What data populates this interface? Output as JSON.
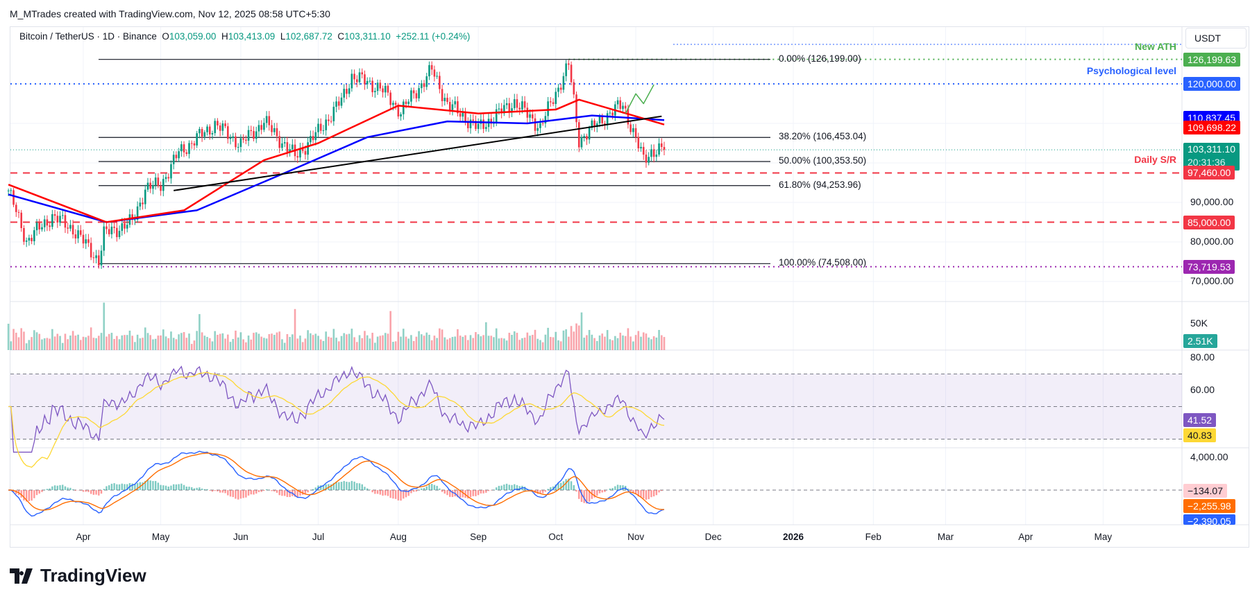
{
  "credit": "M_MTrades created with TradingView.com, Nov 12, 2025 08:58 UTC+5:30",
  "legend": {
    "symbol": "Bitcoin / TetherUS · 1D · Binance",
    "o_label": "O",
    "o": "103,059.00",
    "h_label": "H",
    "h": "103,413.09",
    "l_label": "L",
    "l": "102,687.72",
    "c_label": "C",
    "c": "103,311.10",
    "change": "+252.11 (+0.24%)"
  },
  "unit": "USDT",
  "colors": {
    "up": "#089981",
    "down": "#f23645",
    "ma_red": "#ff0000",
    "ma_blue": "#0000ff",
    "rsi": "#7e57c2",
    "rsi_ma": "#fdd835",
    "macd": "#2962ff",
    "signal": "#ff6d00"
  },
  "price_axis": [
    "90,000.00",
    "80,000.00",
    "70,000.00"
  ],
  "price_tags": [
    {
      "text": "126,199.63",
      "value": 126199.63,
      "color": "#4caf50"
    },
    {
      "text": "120,000.00",
      "value": 120000,
      "color": "#2962ff"
    },
    {
      "text": "110,837.45",
      "value": 110837.45,
      "color": "#0000ff"
    },
    {
      "text": "109,698.22",
      "value": 109698.22,
      "color": "#ff0000"
    },
    {
      "text": "103,311.10",
      "value": 103311.1,
      "color": "#089981",
      "countdown": "20:31:36"
    },
    {
      "text": "97,460.00",
      "value": 97460,
      "color": "#f23645"
    },
    {
      "text": "85,000.00",
      "value": 85000,
      "color": "#f23645"
    },
    {
      "text": "73,719.53",
      "value": 73719.53,
      "color": "#9c27b0"
    }
  ],
  "annotations": [
    {
      "text": "New ATH",
      "value": 126199.63,
      "color": "#4caf50"
    },
    {
      "text": "Psychological level",
      "value": 120000,
      "color": "#2962ff"
    },
    {
      "text": "Daily S/R",
      "value": 97460,
      "color": "#f23645"
    }
  ],
  "fib": [
    {
      "text": "0.00% (126,199.00)",
      "value": 126199
    },
    {
      "text": "38.20% (106,453.04)",
      "value": 106453.04
    },
    {
      "text": "50.00% (100,353.50)",
      "value": 100353.5
    },
    {
      "text": "61.80% (94,253.96)",
      "value": 94253.96
    },
    {
      "text": "100.00% (74,508.00)",
      "value": 74508
    }
  ],
  "volume_axis": "50K",
  "volume_tag": "2.51K",
  "rsi_axis": [
    "80.00",
    "60.00"
  ],
  "rsi_tags": [
    "41.52",
    "40.83"
  ],
  "macd_axis": "4,000.00",
  "macd_tags": [
    "−134.07",
    "−2,255.98",
    "−2,390.05"
  ],
  "months": [
    "Apr",
    "May",
    "Jun",
    "Jul",
    "Aug",
    "Sep",
    "Oct",
    "Nov",
    "Dec",
    "2026",
    "Feb",
    "Mar",
    "Apr",
    "May"
  ],
  "logo": "TradingView",
  "chart_data": {
    "type": "candlestick",
    "symbol": "BTCUSDT",
    "timeframe": "1D",
    "closes_keypoints": [
      [
        "2025-03-03",
        93000
      ],
      [
        "2025-03-10",
        80300
      ],
      [
        "2025-03-20",
        86500
      ],
      [
        "2025-03-28",
        83300
      ],
      [
        "2025-04-07",
        75300
      ],
      [
        "2025-04-09",
        82000
      ],
      [
        "2025-04-20",
        85000
      ],
      [
        "2025-04-25",
        93500
      ],
      [
        "2025-05-01",
        94500
      ],
      [
        "2025-05-08",
        102600
      ],
      [
        "2025-05-22",
        109800
      ],
      [
        "2025-06-01",
        104700
      ],
      [
        "2025-06-10",
        110500
      ],
      [
        "2025-06-22",
        101600
      ],
      [
        "2025-06-30",
        107000
      ],
      [
        "2025-07-10",
        115800
      ],
      [
        "2025-07-14",
        122000
      ],
      [
        "2025-07-25",
        119000
      ],
      [
        "2025-08-02",
        113000
      ],
      [
        "2025-08-14",
        123500
      ],
      [
        "2025-08-20",
        115000
      ],
      [
        "2025-09-01",
        108700
      ],
      [
        "2025-09-15",
        115500
      ],
      [
        "2025-09-25",
        109000
      ],
      [
        "2025-10-06",
        125000
      ],
      [
        "2025-10-10",
        105800
      ],
      [
        "2025-10-20",
        111700
      ],
      [
        "2025-10-27",
        114800
      ],
      [
        "2025-11-04",
        100700
      ],
      [
        "2025-11-07",
        103000
      ],
      [
        "2025-11-12",
        103311.1
      ]
    ],
    "ma_red": [
      [
        "2025-03-03",
        94500
      ],
      [
        "2025-04-10",
        85000
      ],
      [
        "2025-05-10",
        88000
      ],
      [
        "2025-06-10",
        100700
      ],
      [
        "2025-07-01",
        105000
      ],
      [
        "2025-08-01",
        114500
      ],
      [
        "2025-09-01",
        112500
      ],
      [
        "2025-10-01",
        113500
      ],
      [
        "2025-10-10",
        116000
      ],
      [
        "2025-11-12",
        109698.22
      ]
    ],
    "ma_blue": [
      [
        "2025-03-03",
        92000
      ],
      [
        "2025-04-10",
        85000
      ],
      [
        "2025-05-15",
        88000
      ],
      [
        "2025-06-20",
        98000
      ],
      [
        "2025-07-20",
        106500
      ],
      [
        "2025-08-20",
        110500
      ],
      [
        "2025-09-20",
        110000
      ],
      [
        "2025-10-15",
        112000
      ],
      [
        "2025-11-12",
        110837.45
      ]
    ],
    "trendline": [
      [
        "2025-05-06",
        93000
      ],
      [
        "2025-11-11",
        111800
      ]
    ],
    "projection": [
      [
        "2025-10-28",
        112500
      ],
      [
        "2025-11-01",
        117500
      ],
      [
        "2025-11-04",
        115000
      ],
      [
        "2025-11-08",
        119800
      ]
    ],
    "y_range": [
      66000,
      134000
    ]
  }
}
